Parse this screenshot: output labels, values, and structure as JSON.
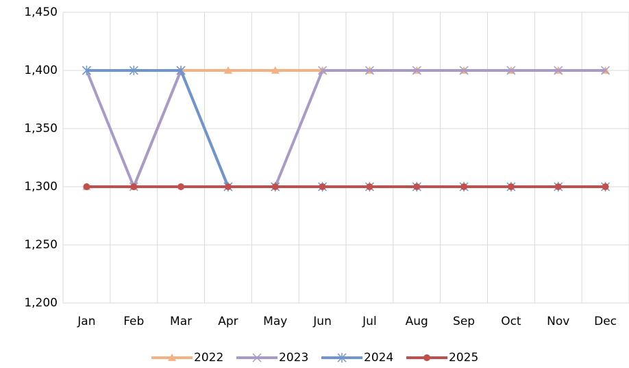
{
  "chart_data": {
    "type": "line",
    "categories": [
      "Jan",
      "Feb",
      "Mar",
      "Apr",
      "May",
      "Jun",
      "Jul",
      "Aug",
      "Sep",
      "Oct",
      "Nov",
      "Dec"
    ],
    "series": [
      {
        "name": "2022",
        "color": "#f4b183",
        "marker": "triangle",
        "values": [
          1300,
          1300,
          1400,
          1400,
          1400,
          1400,
          1400,
          1400,
          1400,
          1400,
          1400,
          1400
        ]
      },
      {
        "name": "2023",
        "color": "#a99bc8",
        "marker": "x",
        "values": [
          1400,
          1300,
          1400,
          1300,
          1300,
          1400,
          1400,
          1400,
          1400,
          1400,
          1400,
          1400
        ]
      },
      {
        "name": "2024",
        "color": "#6f95cc",
        "marker": "asterisk",
        "values": [
          1400,
          1400,
          1400,
          1300,
          1300,
          1300,
          1300,
          1300,
          1300,
          1300,
          1300,
          1300
        ]
      },
      {
        "name": "2025",
        "color": "#c0504d",
        "marker": "circle",
        "values": [
          1300,
          1300,
          1300,
          1300,
          1300,
          1300,
          1300,
          1300,
          1300,
          1300,
          1300,
          1300
        ]
      }
    ],
    "ylim": [
      1200,
      1450
    ],
    "yticks": [
      {
        "value": 1200,
        "label": "1,200"
      },
      {
        "value": 1250,
        "label": "1,250"
      },
      {
        "value": 1300,
        "label": "1,300"
      },
      {
        "value": 1350,
        "label": "1,350"
      },
      {
        "value": 1400,
        "label": "1,400"
      },
      {
        "value": 1450,
        "label": "1,450"
      }
    ],
    "grid": true,
    "legend": "bottom"
  }
}
